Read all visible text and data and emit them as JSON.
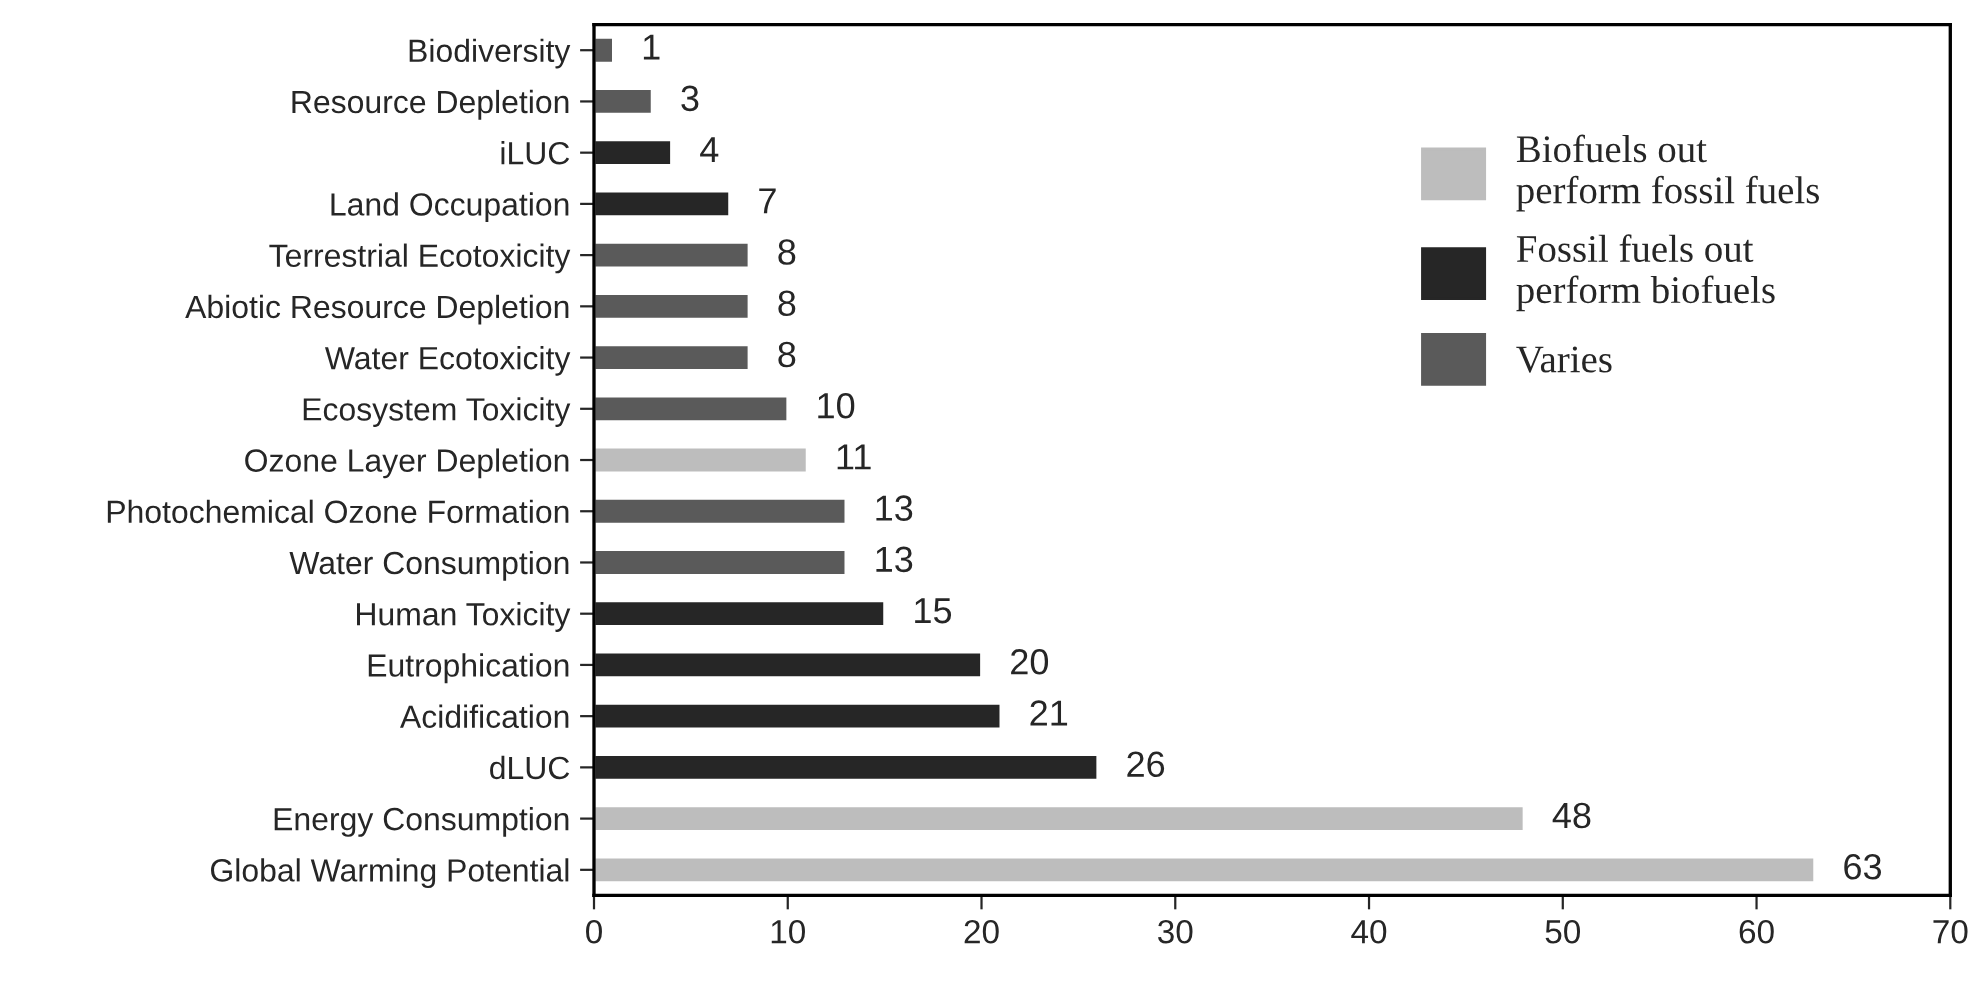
{
  "chart_data": {
    "type": "bar",
    "orientation": "horizontal",
    "categories": [
      "Biodiversity",
      "Resource Depletion",
      "iLUC",
      "Land Occupation",
      "Terrestrial Ecotoxicity",
      "Abiotic Resource Depletion",
      "Water Ecotoxicity",
      "Ecosystem Toxicity",
      "Ozone Layer Depletion",
      "Photochemical Ozone Formation",
      "Water Consumption",
      "Human Toxicity",
      "Eutrophication",
      "Acidification",
      "dLUC",
      "Energy Consumption",
      "Global Warming Potential"
    ],
    "series": [
      {
        "name": "Biofuels out\nperform fossil fuels",
        "color": "#bdbdbd",
        "values": [
          null,
          null,
          null,
          null,
          null,
          null,
          null,
          null,
          11,
          null,
          null,
          null,
          null,
          null,
          null,
          48,
          63
        ]
      },
      {
        "name": "Fossil fuels out\nperform biofuels",
        "color": "#262626",
        "values": [
          null,
          null,
          4,
          7,
          null,
          null,
          null,
          null,
          null,
          null,
          null,
          15,
          20,
          21,
          26,
          null,
          null
        ]
      },
      {
        "name": "Varies",
        "color": "#5a5a5a",
        "values": [
          1,
          3,
          null,
          null,
          8,
          8,
          8,
          10,
          null,
          13,
          13,
          null,
          null,
          null,
          null,
          null,
          null
        ]
      }
    ],
    "xlim": [
      0,
      70
    ],
    "xticks": [
      0,
      10,
      20,
      30,
      40,
      50,
      60,
      70
    ],
    "data_labels": true,
    "legend": "right",
    "grid": false
  }
}
